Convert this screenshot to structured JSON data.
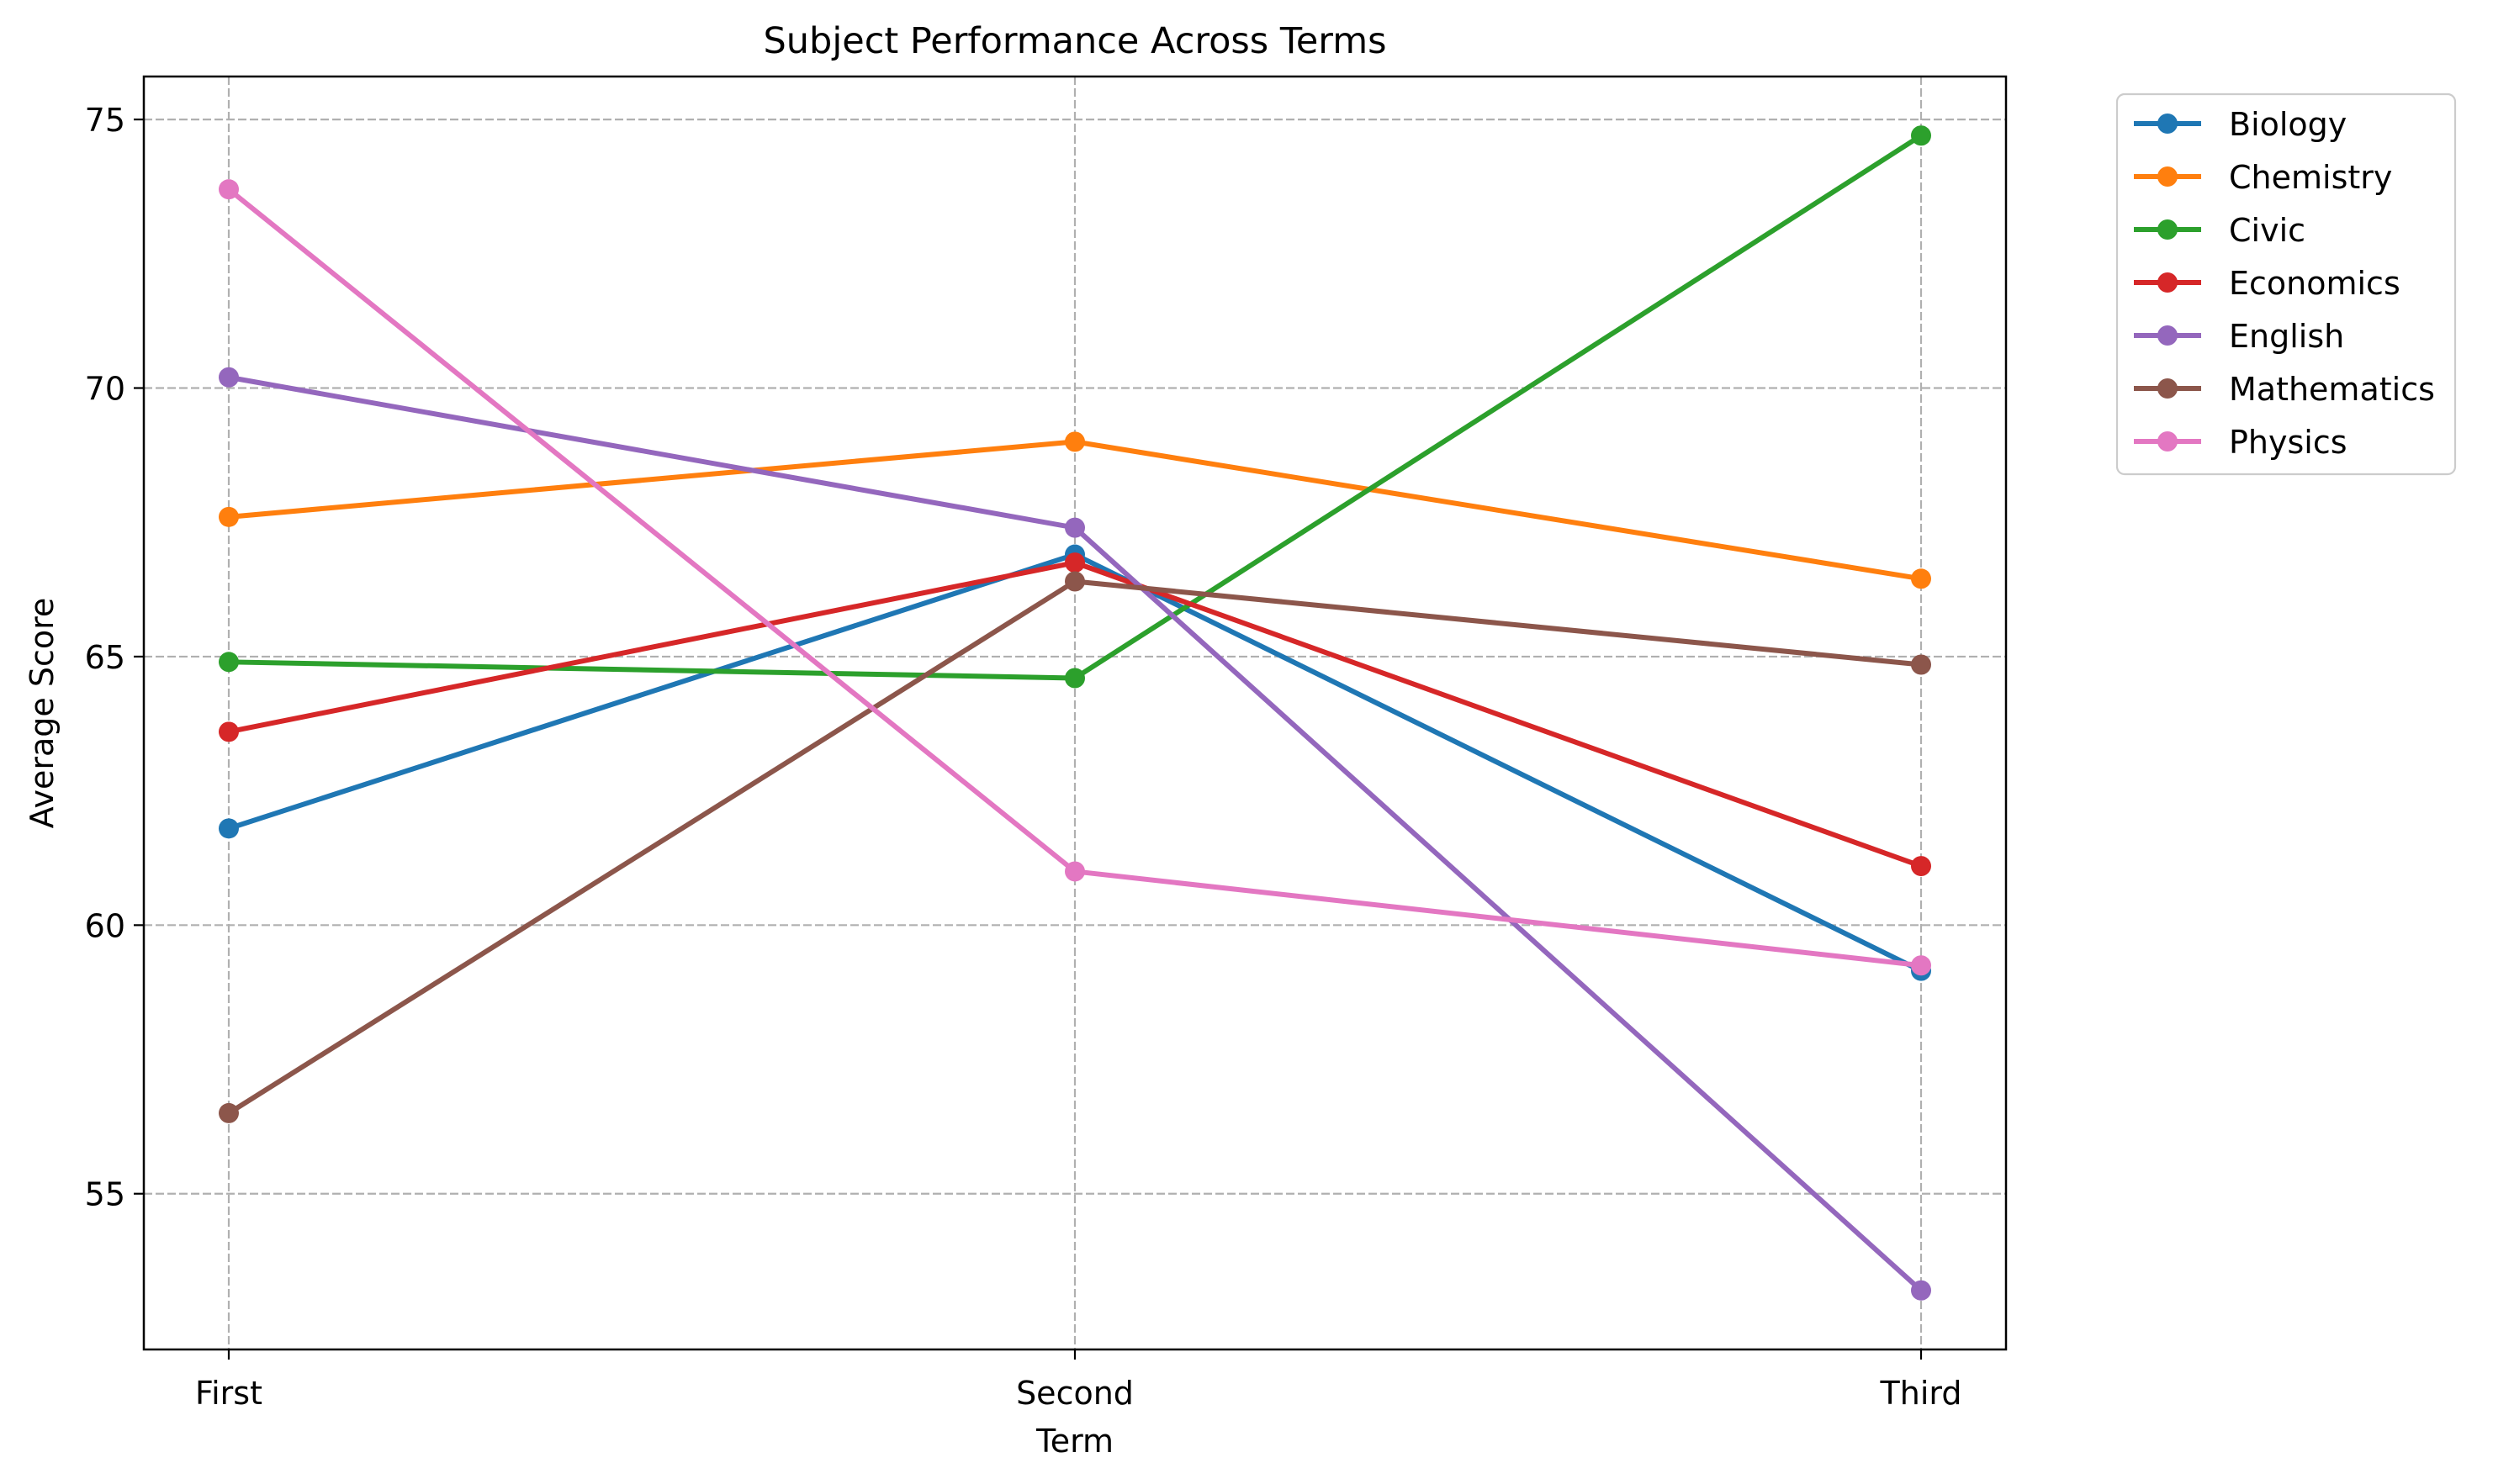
{
  "chart_data": {
    "type": "line",
    "title": "Subject Performance Across Terms",
    "xlabel": "Term",
    "ylabel": "Average Score",
    "categories": [
      "First",
      "Second",
      "Third"
    ],
    "ylim": [
      52.1,
      75.8
    ],
    "yticks": [
      55,
      60,
      65,
      70,
      75
    ],
    "grid": true,
    "legend_position": "outside top-right",
    "series": [
      {
        "name": "Biology",
        "color": "#1f77b4",
        "values": [
          61.8,
          66.9,
          59.15
        ]
      },
      {
        "name": "Chemistry",
        "color": "#ff7f0e",
        "values": [
          67.6,
          69.0,
          66.45
        ]
      },
      {
        "name": "Civic",
        "color": "#2ca02c",
        "values": [
          64.9,
          64.6,
          74.7
        ]
      },
      {
        "name": "Economics",
        "color": "#d62728",
        "values": [
          63.6,
          66.75,
          61.1
        ]
      },
      {
        "name": "English",
        "color": "#9467bd",
        "values": [
          70.2,
          67.4,
          53.2
        ]
      },
      {
        "name": "Mathematics",
        "color": "#8c564b",
        "values": [
          56.5,
          66.4,
          64.85
        ]
      },
      {
        "name": "Physics",
        "color": "#e377c2",
        "values": [
          73.7,
          61.0,
          59.25
        ]
      }
    ]
  }
}
